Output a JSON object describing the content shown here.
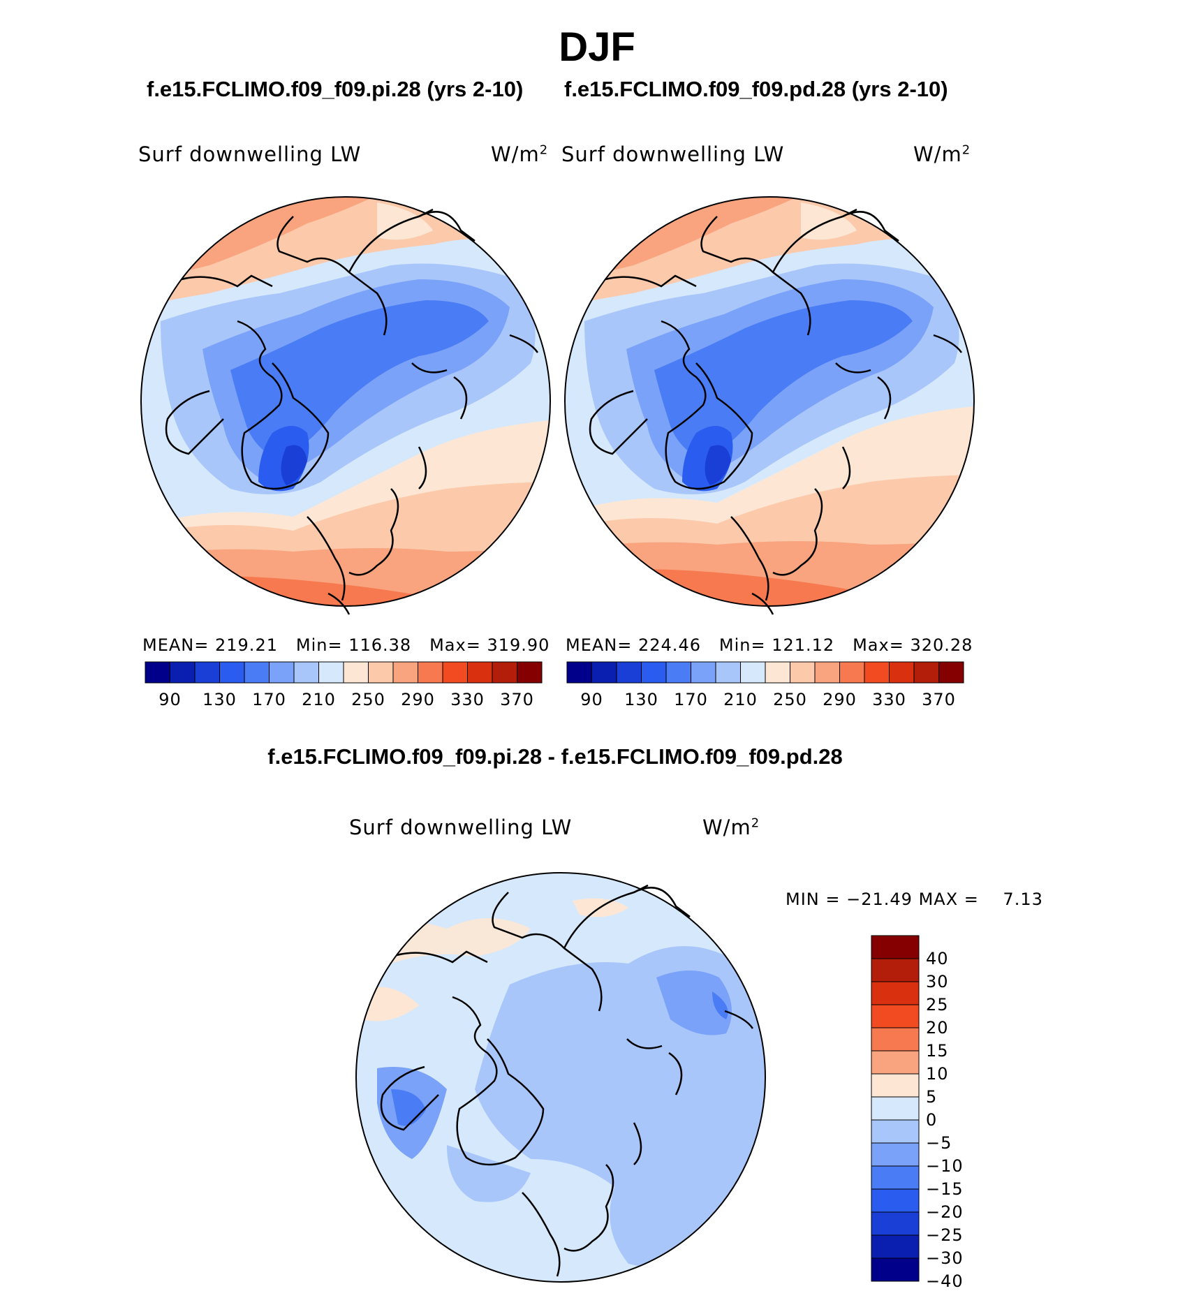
{
  "season": "DJF",
  "panels": [
    {
      "case_title": "f.e15.FCLIMO.f09_f09.pi.28 (yrs 2-10)",
      "variable": "Surf downwelling LW",
      "units": "W/m",
      "units_sup": "2",
      "mean_label": "MEAN=",
      "mean": "219.21",
      "min_label": "Min=",
      "min": "116.38",
      "max_label": "Max=",
      "max": "319.90"
    },
    {
      "case_title": "f.e15.FCLIMO.f09_f09.pd.28 (yrs 2-10)",
      "variable": "Surf downwelling LW",
      "units": "W/m",
      "units_sup": "2",
      "mean_label": "MEAN=",
      "mean": "224.46",
      "min_label": "Min=",
      "min": "121.12",
      "max_label": "Max=",
      "max": "320.28"
    }
  ],
  "diff": {
    "title": "f.e15.FCLIMO.f09_f09.pi.28 - f.e15.FCLIMO.f09_f09.pd.28",
    "variable": "Surf downwelling LW",
    "units": "W/m",
    "units_sup": "2",
    "min_label": "MIN =",
    "min": "−21.49",
    "max_label": "MAX =",
    "max": "7.13"
  },
  "colorbar_top": {
    "colors": [
      "#00008b",
      "#0a1fb0",
      "#1a3fd6",
      "#2a5cf0",
      "#4a7cf5",
      "#7aa2f8",
      "#a9c6fb",
      "#d6e8fc",
      "#fde7d4",
      "#fcc9ab",
      "#f9a47f",
      "#f7794f",
      "#f24b22",
      "#d9300f",
      "#b31e0a",
      "#850000"
    ],
    "labels": [
      "90",
      "130",
      "170",
      "210",
      "250",
      "290",
      "330",
      "370"
    ]
  },
  "colorbar_diff": {
    "colors": [
      "#850000",
      "#b31e0a",
      "#d9300f",
      "#f24b22",
      "#f7794f",
      "#f9a47f",
      "#fde7d4",
      "#d6e8fc",
      "#a9c6fb",
      "#7aa2f8",
      "#4a7cf5",
      "#2a5cf0",
      "#1a3fd6",
      "#0a1fb0",
      "#00008b"
    ],
    "labels": [
      "40",
      "30",
      "25",
      "20",
      "15",
      "10",
      "5",
      "0",
      "−5",
      "−10",
      "−15",
      "−20",
      "−25",
      "−30",
      "−40"
    ]
  }
}
